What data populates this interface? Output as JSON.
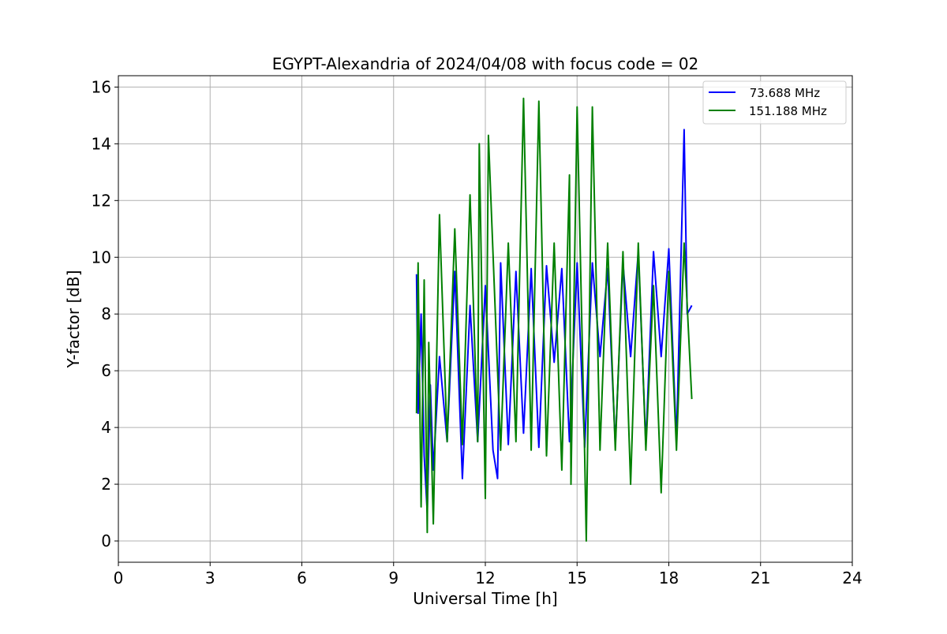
{
  "chart_data": {
    "type": "line",
    "title": "EGYPT-Alexandria of 2024/04/08 with focus code = 02",
    "xlabel": "Universal Time [h]",
    "ylabel": "Y-factor [dB]",
    "xlim": [
      0,
      24
    ],
    "ylim": [
      -0.75,
      16.4
    ],
    "xticks": [
      0,
      3,
      6,
      9,
      12,
      15,
      18,
      21,
      24
    ],
    "yticks": [
      0,
      2,
      4,
      6,
      8,
      10,
      12,
      14,
      16
    ],
    "grid": true,
    "legend_position": "top-right",
    "series": [
      {
        "name": "73.688 MHz",
        "legend_label": " 73.688 MHz",
        "color": "#0000ff",
        "x": [
          9.75,
          9.8,
          9.9,
          10.0,
          10.1,
          10.2,
          10.3,
          10.5,
          10.75,
          11.0,
          11.25,
          11.5,
          11.75,
          12.0,
          12.25,
          12.4,
          12.5,
          12.75,
          13.0,
          13.25,
          13.5,
          13.75,
          14.0,
          14.25,
          14.5,
          14.75,
          15.0,
          15.25,
          15.5,
          15.75,
          16.0,
          16.25,
          16.5,
          16.75,
          17.0,
          17.25,
          17.5,
          17.75,
          18.0,
          18.25,
          18.5,
          18.6,
          18.75
        ],
        "values": [
          9.4,
          4.5,
          8.0,
          3.0,
          1.0,
          5.5,
          2.5,
          6.5,
          3.5,
          9.5,
          2.2,
          8.3,
          3.5,
          9.0,
          3.2,
          2.2,
          9.8,
          3.4,
          9.5,
          3.8,
          9.6,
          3.3,
          9.7,
          6.3,
          9.6,
          3.5,
          9.8,
          3.3,
          9.8,
          6.5,
          9.6,
          3.4,
          9.8,
          6.5,
          10.2,
          3.4,
          10.2,
          6.5,
          10.3,
          3.5,
          14.5,
          8.0,
          8.3
        ]
      },
      {
        "name": "151.188 MHz",
        "legend_label": "151.188 MHz",
        "color": "#008000",
        "x": [
          9.75,
          9.8,
          9.9,
          10.0,
          10.1,
          10.15,
          10.3,
          10.5,
          10.75,
          11.0,
          11.25,
          11.5,
          11.75,
          11.8,
          12.0,
          12.1,
          12.5,
          12.75,
          13.0,
          13.25,
          13.5,
          13.75,
          14.0,
          14.25,
          14.5,
          14.75,
          14.8,
          15.0,
          15.25,
          15.3,
          15.5,
          15.75,
          16.0,
          16.25,
          16.5,
          16.75,
          17.0,
          17.25,
          17.5,
          17.75,
          18.0,
          18.25,
          18.5,
          18.75
        ],
        "values": [
          4.5,
          9.8,
          1.2,
          9.2,
          0.3,
          7.0,
          0.6,
          11.5,
          3.5,
          11.0,
          3.4,
          12.2,
          3.5,
          14.0,
          1.5,
          14.3,
          3.2,
          10.5,
          3.5,
          15.6,
          3.2,
          15.5,
          3.0,
          10.5,
          2.5,
          12.9,
          2.0,
          15.3,
          3.0,
          0.0,
          15.3,
          3.2,
          10.5,
          3.2,
          10.2,
          2.0,
          10.5,
          3.2,
          9.0,
          1.7,
          9.5,
          3.2,
          10.5,
          5.0
        ]
      }
    ]
  }
}
